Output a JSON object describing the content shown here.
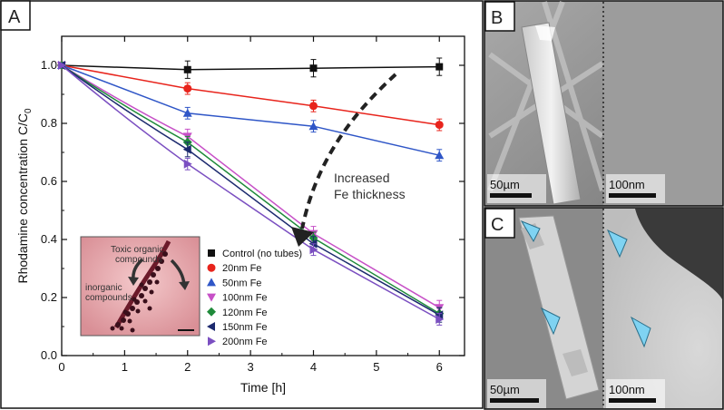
{
  "panels": {
    "a": {
      "letter": "A"
    },
    "b": {
      "letter": "B",
      "scale_left": "50µm",
      "scale_right": "100nm"
    },
    "c": {
      "letter": "C",
      "scale_left": "50µm",
      "scale_right": "100nm"
    }
  },
  "inset": {
    "label_top_line1": "Toxic organic",
    "label_top_line2": "compounds",
    "label_bottom_line1": "inorganic",
    "label_bottom_line2": "compounds"
  },
  "annotation": {
    "line1": "Increased",
    "line2": "Fe thickness"
  },
  "colors": {
    "control": "#111111",
    "fe20": "#e8241c",
    "fe50": "#2f56c7",
    "fe100": "#c750c7",
    "fe120": "#1f8a3a",
    "fe150": "#1c2a6e",
    "fe200": "#7b4fc1"
  },
  "chart_data": {
    "type": "line",
    "title": "",
    "xlabel": "Time [h]",
    "ylabel": "Rhodamine concentration C/C",
    "ylabel_subscript": "0",
    "xlim": [
      0,
      6.4
    ],
    "ylim": [
      0.0,
      1.1
    ],
    "xticks": [
      "0",
      "1",
      "2",
      "3",
      "4",
      "5",
      "6"
    ],
    "yticks": [
      "0.0",
      "0.2",
      "0.4",
      "0.6",
      "0.8",
      "1.0"
    ],
    "x": [
      0,
      2,
      4,
      6
    ],
    "legend_position": "bottom-left",
    "series": [
      {
        "name": "Control (no tubes)",
        "marker": "square",
        "values": [
          1.0,
          0.985,
          0.99,
          0.995
        ]
      },
      {
        "name": "20nm Fe",
        "marker": "circle",
        "values": [
          1.0,
          0.92,
          0.86,
          0.795
        ]
      },
      {
        "name": "50nm Fe",
        "marker": "triangle-up",
        "values": [
          1.0,
          0.835,
          0.79,
          0.69
        ]
      },
      {
        "name": "100nm Fe",
        "marker": "triangle-down",
        "values": [
          1.0,
          0.755,
          0.42,
          0.165
        ]
      },
      {
        "name": "120nm Fe",
        "marker": "diamond",
        "values": [
          1.0,
          0.735,
          0.405,
          0.145
        ]
      },
      {
        "name": "150nm Fe",
        "marker": "triangle-left",
        "values": [
          1.0,
          0.71,
          0.385,
          0.14
        ]
      },
      {
        "name": "200nm Fe",
        "marker": "triangle-right",
        "values": [
          1.0,
          0.66,
          0.365,
          0.125
        ]
      }
    ]
  }
}
